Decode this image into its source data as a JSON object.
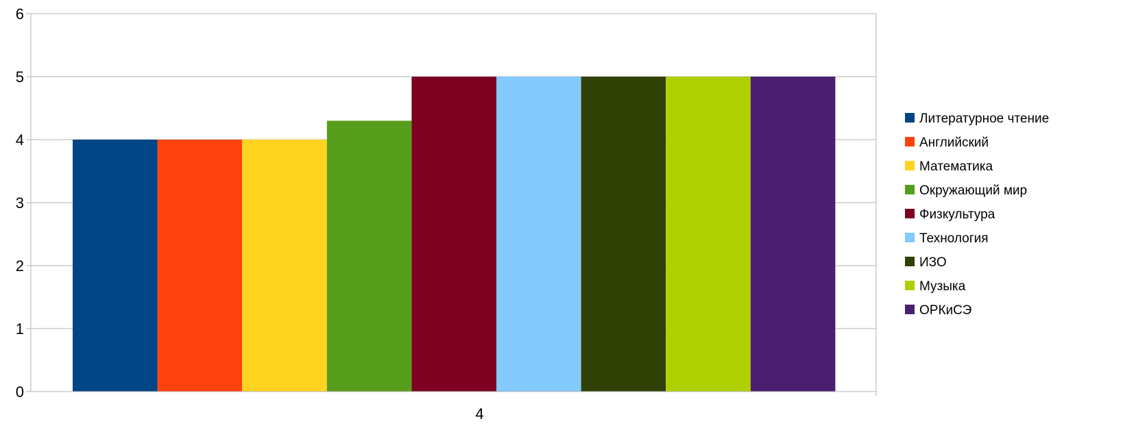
{
  "chart_data": {
    "type": "bar",
    "categories": [
      "4"
    ],
    "series": [
      {
        "name": "Литературное чтение",
        "values": [
          4.0
        ],
        "color": "#004586"
      },
      {
        "name": "Английский",
        "values": [
          4.0
        ],
        "color": "#ff420e"
      },
      {
        "name": "Математика",
        "values": [
          4.0
        ],
        "color": "#ffd320"
      },
      {
        "name": "Окружающий мир",
        "values": [
          4.3
        ],
        "color": "#579d1c"
      },
      {
        "name": "Физкультура",
        "values": [
          5.0
        ],
        "color": "#7e0021"
      },
      {
        "name": "Технология",
        "values": [
          5.0
        ],
        "color": "#83caff"
      },
      {
        "name": "ИЗО",
        "values": [
          5.0
        ],
        "color": "#314004"
      },
      {
        "name": "Музыка",
        "values": [
          5.0
        ],
        "color": "#aecf00"
      },
      {
        "name": "ОРКиСЭ",
        "values": [
          5.0
        ],
        "color": "#4b1f6f"
      }
    ],
    "title": "",
    "xlabel": "",
    "ylabel": "",
    "ylim": [
      0,
      6
    ],
    "yticks": [
      "0",
      "1",
      "2",
      "3",
      "4",
      "5",
      "6"
    ],
    "grid": true,
    "legend_position": "right"
  }
}
